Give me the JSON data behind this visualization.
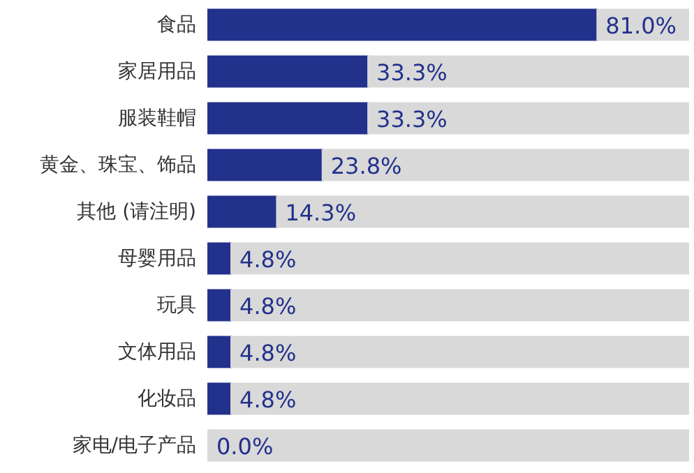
{
  "chart_data": {
    "type": "bar",
    "orientation": "horizontal",
    "stacked": true,
    "categories": [
      "食品",
      "家居用品",
      "服装鞋帽",
      "黄金、珠宝、饰品",
      "其他 (请注明)",
      "母婴用品",
      "玩具",
      "文体用品",
      "化妆品",
      "家电/电子产品"
    ],
    "series": [
      {
        "color": "#22318c",
        "values": [
          81.0,
          33.3,
          33.3,
          23.8,
          14.3,
          4.8,
          4.8,
          4.8,
          4.8,
          0.0
        ],
        "value_labels": [
          "81.0%",
          "33.3%",
          "33.3%",
          "23.8%",
          "14.3%",
          "4.8%",
          "4.8%",
          "4.8%",
          "4.8%",
          "0.0%"
        ]
      },
      {
        "color": "#d9d9d9",
        "values": [
          19.0,
          66.7,
          66.7,
          76.2,
          85.7,
          95.2,
          95.2,
          95.2,
          95.2,
          100.0
        ]
      }
    ],
    "xlim": [
      0,
      100
    ],
    "tick_labels": "y"
  }
}
